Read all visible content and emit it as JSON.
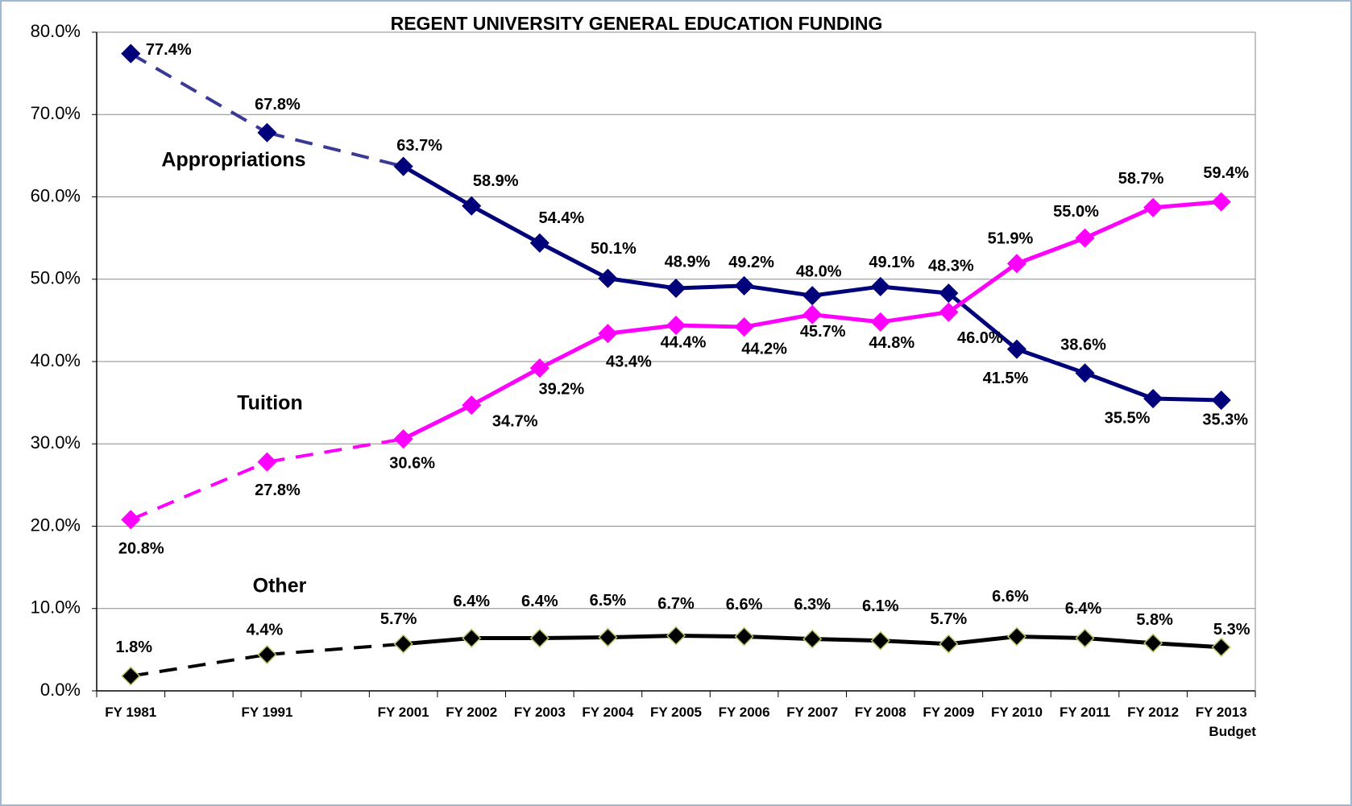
{
  "chart_data": {
    "type": "line",
    "title": "REGENT UNIVERSITY GENERAL EDUCATION FUNDING",
    "categories": [
      "FY 1981",
      null,
      "FY 1991",
      null,
      "FY 2001",
      "FY 2002",
      "FY 2003",
      "FY 2004",
      "FY 2005",
      "FY 2006",
      "FY 2007",
      "FY 2008",
      "FY 2009",
      "FY 2010",
      "FY 2011",
      "FY 2012",
      "FY 2013\nBudget"
    ],
    "series": [
      {
        "name": "Appropriations",
        "color": "#00007a",
        "dash_color": "#3a3a96",
        "marker_color": "#00007a",
        "marker_edge": "#00007a",
        "values": [
          77.4,
          null,
          67.8,
          null,
          63.7,
          58.9,
          54.4,
          50.1,
          48.9,
          49.2,
          48.0,
          49.1,
          48.3,
          41.5,
          38.6,
          35.5,
          35.3
        ],
        "value_labels": [
          "77.4%",
          null,
          "67.8%",
          null,
          "63.7%",
          "58.9%",
          "54.4%",
          "50.1%",
          "48.9%",
          "49.2%",
          "48.0%",
          "49.1%",
          "48.3%",
          "41.5%",
          "38.6%",
          "35.5%",
          "35.3%"
        ]
      },
      {
        "name": "Tuition",
        "color": "#ff00ff",
        "dash_color": "#ff00ff",
        "marker_color": "#ff00ff",
        "marker_edge": "#ff00ff",
        "values": [
          20.8,
          null,
          27.8,
          null,
          30.6,
          34.7,
          39.2,
          43.4,
          44.4,
          44.2,
          45.7,
          44.8,
          46.0,
          51.9,
          55.0,
          58.7,
          59.4
        ],
        "value_labels": [
          "20.8%",
          null,
          "27.8%",
          null,
          "30.6%",
          "34.7%",
          "39.2%",
          "43.4%",
          "44.4%",
          "44.2%",
          "45.7%",
          "44.8%",
          "46.0%",
          "51.9%",
          "55.0%",
          "58.7%",
          "59.4%"
        ]
      },
      {
        "name": "Other",
        "color": "#000000",
        "dash_color": "#000000",
        "marker_color": "#000000",
        "marker_edge": "#b5c96a",
        "values": [
          1.8,
          null,
          4.4,
          null,
          5.7,
          6.4,
          6.4,
          6.5,
          6.7,
          6.6,
          6.3,
          6.1,
          5.7,
          6.6,
          6.4,
          5.8,
          5.3
        ],
        "value_labels": [
          "1.8%",
          null,
          "4.4%",
          null,
          "5.7%",
          "6.4%",
          "6.4%",
          "6.5%",
          "6.7%",
          "6.6%",
          "6.3%",
          "6.1%",
          "5.7%",
          "6.6%",
          "6.4%",
          "5.8%",
          "5.3%"
        ]
      }
    ],
    "ylim": [
      0,
      80
    ],
    "yticks": [
      {
        "value": 0,
        "label": "0.0%"
      },
      {
        "value": 10,
        "label": "10.0%"
      },
      {
        "value": 20,
        "label": "20.0%"
      },
      {
        "value": 30,
        "label": "30.0%"
      },
      {
        "value": 40,
        "label": "40.0%"
      },
      {
        "value": 50,
        "label": "50.0%"
      },
      {
        "value": 60,
        "label": "60.0%"
      },
      {
        "value": 70,
        "label": "70.0%"
      },
      {
        "value": 80,
        "label": "80.0%"
      }
    ],
    "grid": true
  }
}
